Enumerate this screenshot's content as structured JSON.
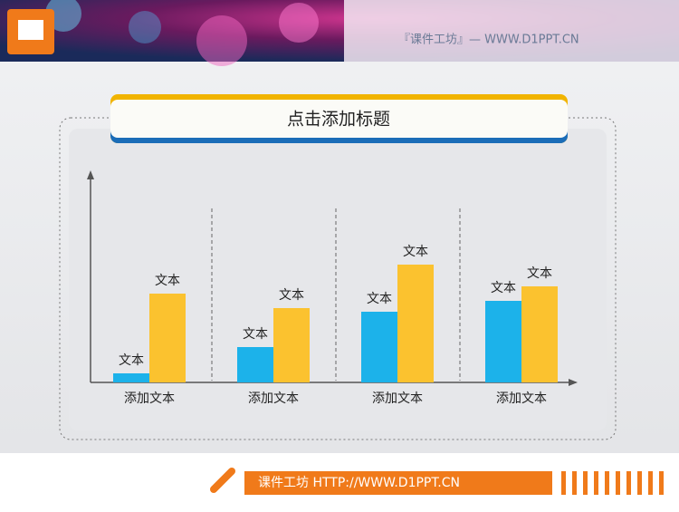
{
  "header": {
    "brand": "『课件工坊』— WWW.D1PPT.CN"
  },
  "footer": {
    "text": "课件工坊  HTTP://WWW.D1PPT.CN"
  },
  "chart_data": {
    "type": "bar",
    "title": "点击添加标题",
    "categories": [
      "添加文本",
      "添加文本",
      "添加文本",
      "添加文本"
    ],
    "series": [
      {
        "color": "#1cb2ea",
        "values": [
          10,
          39,
          78,
          90
        ],
        "data_labels": [
          "文本",
          "文本",
          "文本",
          "文本"
        ]
      },
      {
        "color": "#fbc22f",
        "values": [
          98,
          82,
          130,
          106
        ],
        "data_labels": [
          "文本",
          "文本",
          "文本",
          "文本"
        ]
      }
    ],
    "ylim": [
      0,
      232
    ]
  }
}
